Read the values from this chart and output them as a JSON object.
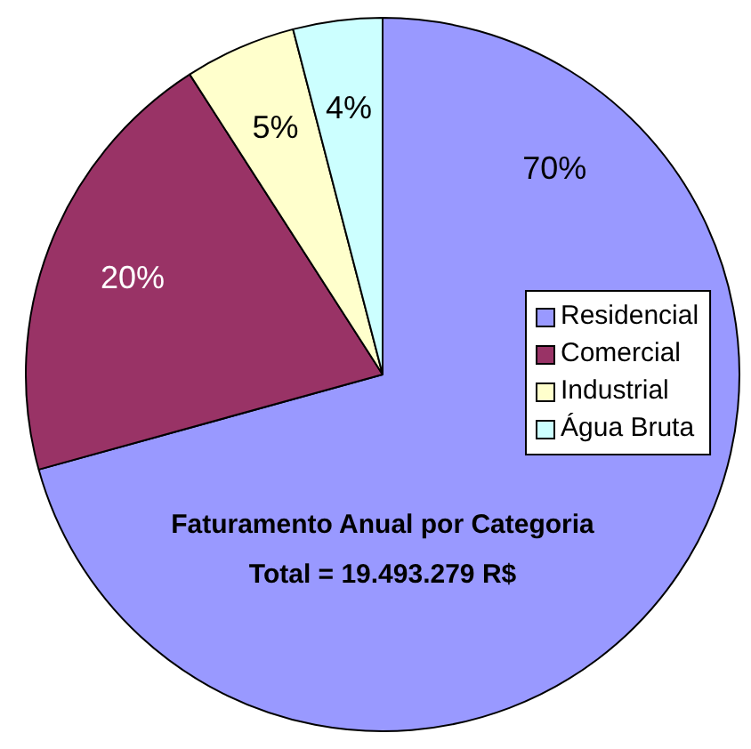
{
  "chart_data": {
    "type": "pie",
    "title": "Faturamento Anual por Categoria",
    "subtitle": "Total = 19.493.279 R$",
    "categories": [
      "Residencial",
      "Comercial",
      "Industrial",
      "Água Bruta"
    ],
    "values": [
      70,
      20,
      5,
      4
    ],
    "value_labels": [
      "70%",
      "20%",
      "5%",
      "4%"
    ],
    "colors": [
      "#9999ff",
      "#993366",
      "#ffffcc",
      "#ccffff"
    ],
    "legend": "right"
  }
}
